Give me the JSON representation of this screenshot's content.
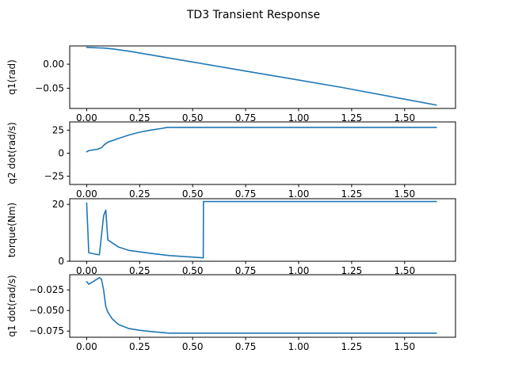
{
  "title": "TD3 Transient Response",
  "colors": {
    "series": "#1f77b4",
    "axes": "#000000",
    "background": "#ffffff"
  },
  "chart_data": [
    {
      "type": "line",
      "ylabel": "q1(rad)",
      "xlim": [
        -0.08,
        1.74
      ],
      "ylim": [
        -0.092,
        0.038
      ],
      "xticks": [
        0.0,
        0.25,
        0.5,
        0.75,
        1.0,
        1.25,
        1.5
      ],
      "xtick_labels": [
        "0.00",
        "0.25",
        "0.50",
        "0.75",
        "1.00",
        "1.25",
        "1.50"
      ],
      "yticks": [
        0.0,
        -0.05
      ],
      "ytick_labels": [
        "0.00",
        "−0.05"
      ],
      "series": [
        {
          "x": [
            0.0,
            0.05,
            0.08,
            0.12,
            0.2,
            0.4,
            0.8,
            1.2,
            1.65
          ],
          "y": [
            0.035,
            0.034,
            0.0335,
            0.032,
            0.027,
            0.012,
            -0.018,
            -0.048,
            -0.085
          ]
        }
      ]
    },
    {
      "type": "line",
      "ylabel": "q2 dot(rad/s)",
      "xlim": [
        -0.08,
        1.74
      ],
      "ylim": [
        -34,
        34
      ],
      "xticks": [
        0.0,
        0.25,
        0.5,
        0.75,
        1.0,
        1.25,
        1.5
      ],
      "xtick_labels": [
        "0.00",
        "0.25",
        "0.50",
        "0.75",
        "1.00",
        "1.25",
        "1.50"
      ],
      "yticks": [
        25,
        0,
        -25
      ],
      "ytick_labels": [
        "25",
        "0",
        "−25"
      ],
      "series": [
        {
          "x": [
            0.0,
            0.01,
            0.03,
            0.05,
            0.07,
            0.085,
            0.1,
            0.15,
            0.2,
            0.25,
            0.3,
            0.35,
            0.38,
            0.5,
            1.0,
            1.65
          ],
          "y": [
            1.5,
            2.8,
            3.5,
            4.2,
            6.0,
            9.5,
            12.0,
            16.0,
            19.8,
            22.8,
            25.0,
            26.8,
            28.0,
            28.0,
            28.0,
            28.0
          ]
        }
      ]
    },
    {
      "type": "line",
      "ylabel": "torque(Nm)",
      "xlim": [
        -0.08,
        1.74
      ],
      "ylim": [
        0,
        22
      ],
      "xticks": [
        0.0,
        0.25,
        0.5,
        0.75,
        1.0,
        1.25,
        1.5
      ],
      "xtick_labels": [
        "0.00",
        "0.25",
        "0.50",
        "0.75",
        "1.00",
        "1.25",
        "1.50"
      ],
      "yticks": [
        20,
        0
      ],
      "ytick_labels": [
        "20",
        "0"
      ],
      "series": [
        {
          "x": [
            0.0,
            0.01,
            0.04,
            0.06,
            0.08,
            0.09,
            0.1,
            0.15,
            0.2,
            0.3,
            0.39,
            0.55,
            0.551,
            1.0,
            1.65
          ],
          "y": [
            20.5,
            3.0,
            2.5,
            2.3,
            16.0,
            18.0,
            7.5,
            5.0,
            3.8,
            2.8,
            2.0,
            1.2,
            21.0,
            21.0,
            21.0
          ]
        }
      ]
    },
    {
      "type": "line",
      "ylabel": "q1 dot(rad/s)",
      "xlim": [
        -0.08,
        1.74
      ],
      "ylim": [
        -0.0825,
        -0.0065
      ],
      "xticks": [
        0.0,
        0.25,
        0.5,
        0.75,
        1.0,
        1.25,
        1.5
      ],
      "xtick_labels": [
        "0.00",
        "0.25",
        "0.50",
        "0.75",
        "1.00",
        "1.25",
        "1.50"
      ],
      "yticks": [
        -0.025,
        -0.05,
        -0.075
      ],
      "ytick_labels": [
        "−0.025",
        "−0.050",
        "−0.075"
      ],
      "series": [
        {
          "x": [
            0.0,
            0.01,
            0.03,
            0.06,
            0.07,
            0.08,
            0.09,
            0.1,
            0.12,
            0.15,
            0.2,
            0.25,
            0.3,
            0.39,
            1.0,
            1.65
          ],
          "y": [
            -0.015,
            -0.018,
            -0.015,
            -0.01,
            -0.012,
            -0.025,
            -0.045,
            -0.052,
            -0.06,
            -0.067,
            -0.072,
            -0.074,
            -0.0755,
            -0.0775,
            -0.0775,
            -0.0775
          ]
        }
      ]
    }
  ]
}
